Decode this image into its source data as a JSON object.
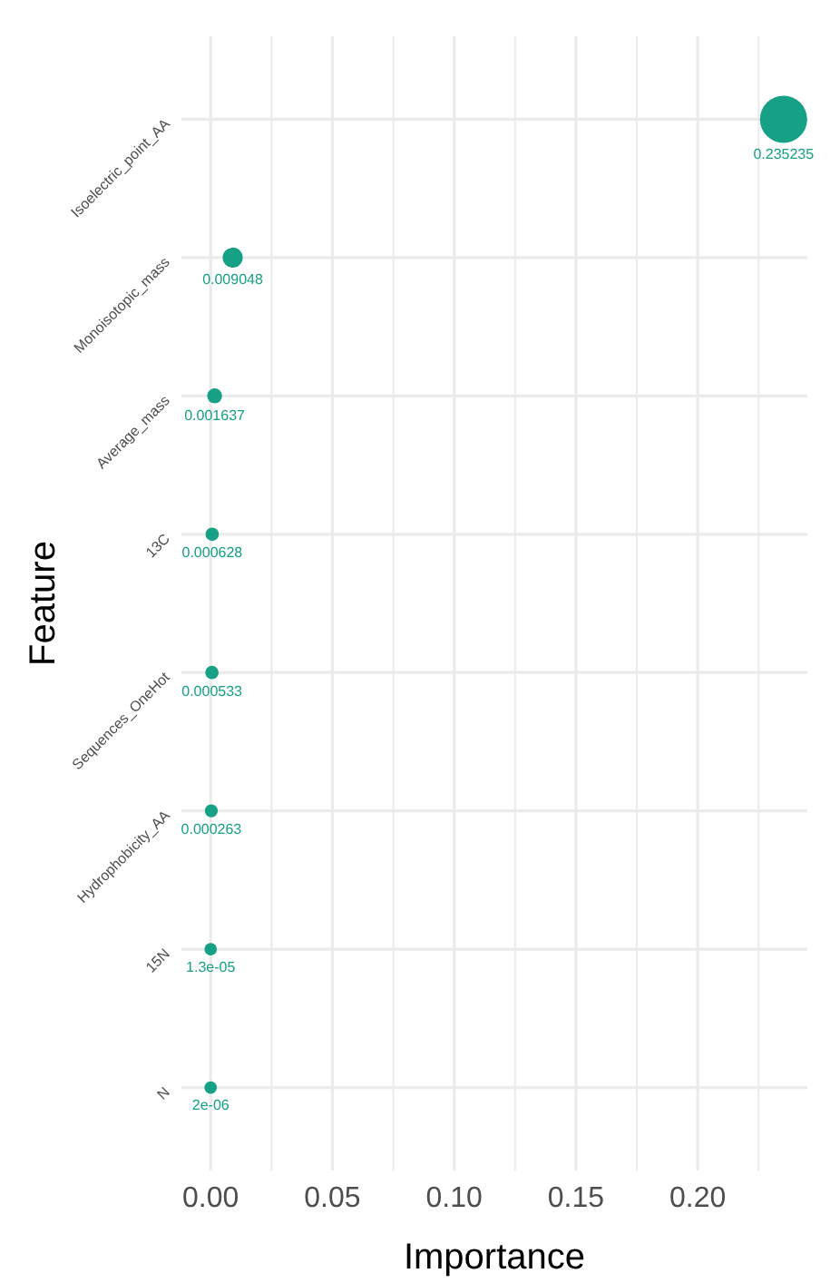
{
  "chart_data": {
    "type": "bubble",
    "orientation": "horizontal",
    "xlabel": "Importance",
    "ylabel": "Feature",
    "categories": [
      "Isoelectric_point_AA",
      "Monoisotopic_mass",
      "Average_mass",
      "13C",
      "Sequences_OneHot",
      "Hydrophobicity_AA",
      "15N",
      "N"
    ],
    "values": [
      0.235235,
      0.009048,
      0.001637,
      0.000628,
      0.000533,
      0.000263,
      1.3e-05,
      2e-06
    ],
    "value_labels": [
      "0.235235",
      "0.009048",
      "0.001637",
      "0.000628",
      "0.000533",
      "0.000263",
      "1.3e-05",
      "2e-06"
    ],
    "sizes": [
      1,
      0.18,
      0.1,
      0.08,
      0.08,
      0.075,
      0.07,
      0.07
    ],
    "color": "#16a085",
    "xlim": [
      -0.012,
      0.245
    ],
    "xticks": [
      {
        "value": 0,
        "label": "0.00"
      },
      {
        "value": 0.025,
        "label": null
      },
      {
        "value": 0.05,
        "label": "0.05"
      },
      {
        "value": 0.075,
        "label": null
      },
      {
        "value": 0.1,
        "label": "0.10"
      },
      {
        "value": 0.125,
        "label": null
      },
      {
        "value": 0.15,
        "label": "0.15"
      },
      {
        "value": 0.175,
        "label": null
      },
      {
        "value": 0.2,
        "label": "0.20"
      },
      {
        "value": 0.225,
        "label": null
      }
    ],
    "grid": true
  }
}
